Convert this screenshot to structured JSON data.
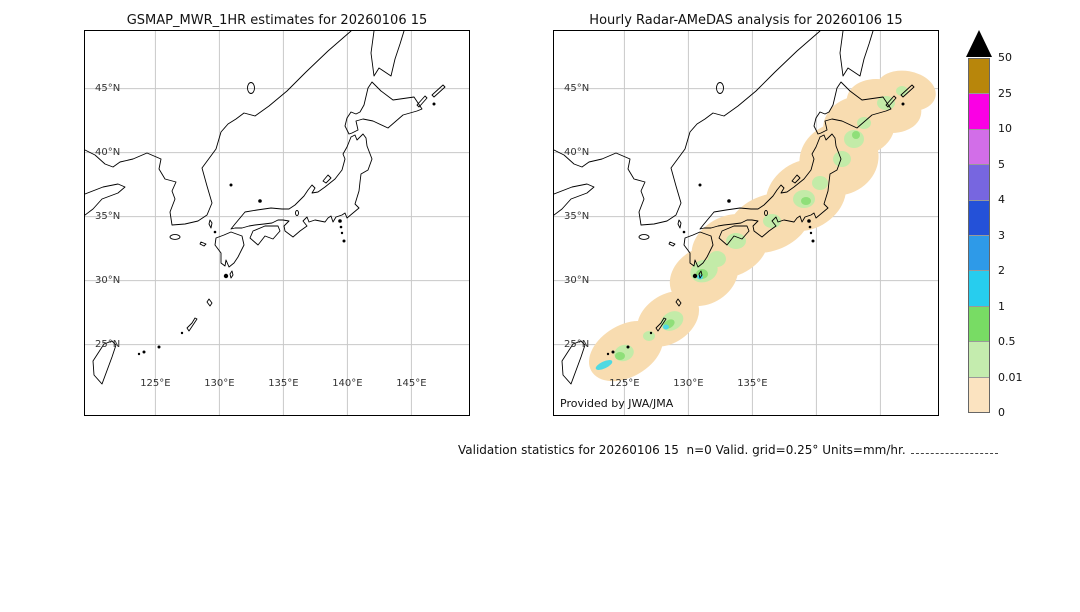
{
  "left_panel": {
    "title": "GSMAP_MWR_1HR estimates for 20260106 15",
    "lat_ticks": [
      "45°N",
      "40°N",
      "35°N",
      "30°N",
      "25°N"
    ],
    "lon_ticks": [
      "125°E",
      "130°E",
      "135°E",
      "140°E",
      "145°E"
    ]
  },
  "right_panel": {
    "title": "Hourly Radar-AMeDAS analysis for 20260106 15",
    "lat_ticks": [
      "45°N",
      "40°N",
      "35°N",
      "30°N",
      "25°N"
    ],
    "lon_ticks": [
      "125°E",
      "130°E",
      "135°E"
    ],
    "credit": "Provided by JWA/JMA"
  },
  "colorbar": {
    "labels": [
      "50",
      "25",
      "10",
      "5",
      "4",
      "3",
      "2",
      "1",
      "0.5",
      "0.01",
      "0"
    ],
    "colors_top_to_bottom": [
      "#b8860b",
      "#fa00e4",
      "#d26ee8",
      "#7766e0",
      "#2451d8",
      "#2e9ae8",
      "#27cdee",
      "#78dc64",
      "#c4ecae",
      "#fbe3c0"
    ],
    "overflow_arrow_color": "#000000",
    "units": "mm/hr"
  },
  "caption": "Validation statistics for 20260106 15  n=0 Valid. grid=0.25° Units=mm/hr.",
  "precip": {
    "level_labels": [
      "0-0.01",
      "0.01-0.5",
      "0.5-1",
      "1-2"
    ],
    "level_colors": [
      "#f8dcb0",
      "#c3eba8",
      "#8fdf79",
      "#4fd9e2"
    ],
    "blobs": [
      [
        72,
        320,
        40,
        26,
        -30,
        0
      ],
      [
        114,
        288,
        34,
        24,
        -35,
        0
      ],
      [
        150,
        245,
        36,
        28,
        -30,
        0
      ],
      [
        176,
        215,
        40,
        30,
        -25,
        0
      ],
      [
        215,
        192,
        42,
        28,
        -20,
        0
      ],
      [
        252,
        164,
        42,
        34,
        -30,
        0
      ],
      [
        285,
        128,
        40,
        36,
        -20,
        0
      ],
      [
        305,
        95,
        36,
        30,
        -10,
        0
      ],
      [
        330,
        75,
        38,
        26,
        15,
        0
      ],
      [
        352,
        60,
        30,
        20,
        10,
        0
      ],
      [
        150,
        240,
        14,
        11,
        -20,
        1
      ],
      [
        163,
        228,
        9,
        8,
        0,
        1
      ],
      [
        182,
        210,
        10,
        8,
        0,
        1
      ],
      [
        218,
        190,
        9,
        7,
        0,
        1
      ],
      [
        250,
        168,
        11,
        9,
        0,
        1
      ],
      [
        266,
        152,
        8,
        7,
        0,
        1
      ],
      [
        288,
        128,
        9,
        8,
        0,
        1
      ],
      [
        300,
        108,
        10,
        9,
        0,
        1
      ],
      [
        310,
        92,
        7,
        6,
        0,
        1
      ],
      [
        332,
        72,
        9,
        7,
        0,
        1
      ],
      [
        348,
        60,
        6,
        5,
        0,
        1
      ],
      [
        118,
        290,
        12,
        9,
        -30,
        1
      ],
      [
        70,
        322,
        10,
        8,
        -20,
        1
      ],
      [
        95,
        305,
        6,
        5,
        0,
        1
      ],
      [
        148,
        243,
        6,
        5,
        0,
        2
      ],
      [
        115,
        293,
        6,
        4,
        -30,
        2
      ],
      [
        66,
        325,
        5,
        4,
        0,
        2
      ],
      [
        302,
        104,
        4,
        4,
        0,
        2
      ],
      [
        252,
        170,
        5,
        4,
        0,
        2
      ],
      [
        50,
        334,
        9,
        3.5,
        -25,
        3
      ],
      [
        112,
        296,
        3,
        2.5,
        0,
        3
      ],
      [
        146,
        246,
        3,
        2.5,
        0,
        3
      ]
    ]
  }
}
